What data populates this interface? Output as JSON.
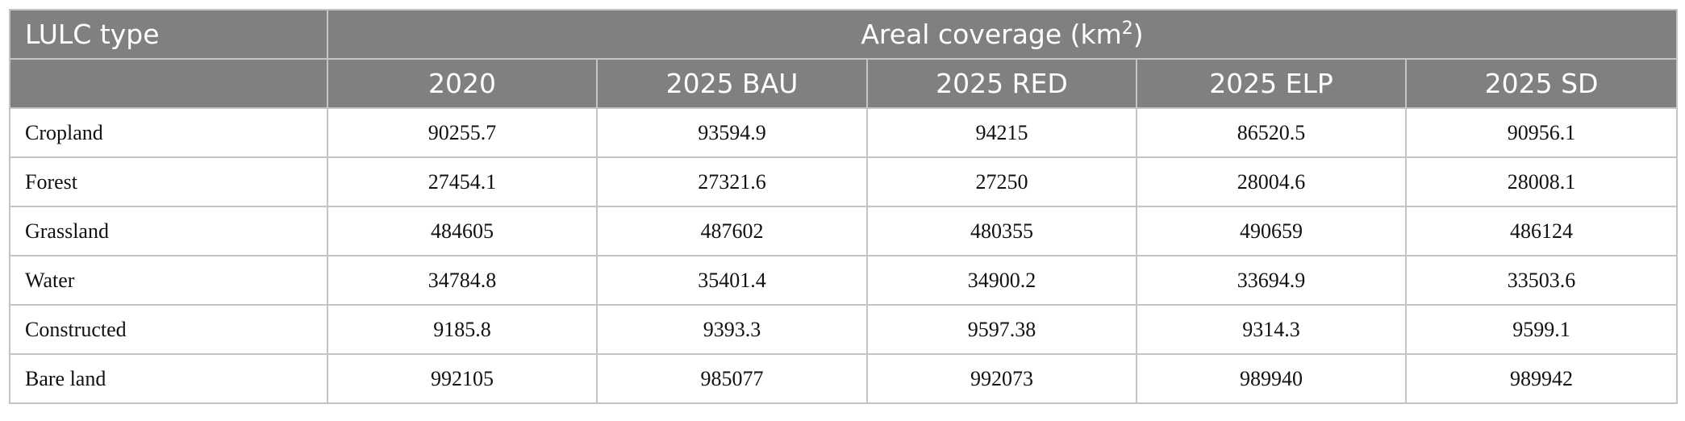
{
  "table": {
    "header": {
      "first": "LULC type",
      "group": {
        "text": "Areal coverage (km",
        "sup": "2",
        "after": ")"
      }
    },
    "columns": [
      "2020",
      "2025 BAU",
      "2025 RED",
      "2025 ELP",
      "2025 SD"
    ],
    "rows": [
      [
        "Cropland",
        90255.7,
        93594.9,
        94215,
        86520.5,
        90956.1
      ],
      [
        "Forest",
        27454.1,
        27321.6,
        27250,
        28004.6,
        28008.1
      ],
      [
        "Grassland",
        484605,
        487602,
        480355,
        490659,
        486124
      ],
      [
        "Water",
        34784.8,
        35401.4,
        34900.2,
        33694.9,
        33503.6
      ],
      [
        "Constructed",
        9185.8,
        9393.3,
        9597.38,
        9314.3,
        9599.1
      ],
      [
        "Bare land",
        992105,
        985077,
        992073,
        989940,
        989942
      ]
    ]
  }
}
